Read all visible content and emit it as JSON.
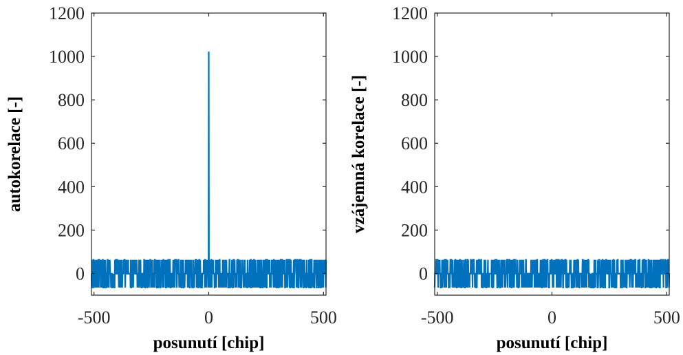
{
  "chart_data": [
    {
      "type": "line",
      "xlabel": "posunutí [chip]",
      "ylabel": "autokorelace [-]",
      "xlim": [
        -511,
        511
      ],
      "ylim": [
        -100,
        1200
      ],
      "xticks": [
        -500,
        0,
        500
      ],
      "yticks": [
        0,
        200,
        400,
        600,
        800,
        1000,
        1200
      ],
      "grid": false,
      "series": [
        {
          "color": "#0072BD",
          "peak": {
            "x": 0,
            "y": 1023
          },
          "sidelobe_levels": [
            -65,
            -1,
            63
          ]
        }
      ]
    },
    {
      "type": "line",
      "xlabel": "posunutí [chip]",
      "ylabel": "vzájemná korelace [-]",
      "xlim": [
        -511,
        511
      ],
      "ylim": [
        -100,
        1200
      ],
      "xticks": [
        -500,
        0,
        500
      ],
      "yticks": [
        0,
        200,
        400,
        600,
        800,
        1000,
        1200
      ],
      "grid": false,
      "series": [
        {
          "color": "#0072BD",
          "sidelobe_levels": [
            -65,
            -1,
            63
          ]
        }
      ]
    }
  ]
}
